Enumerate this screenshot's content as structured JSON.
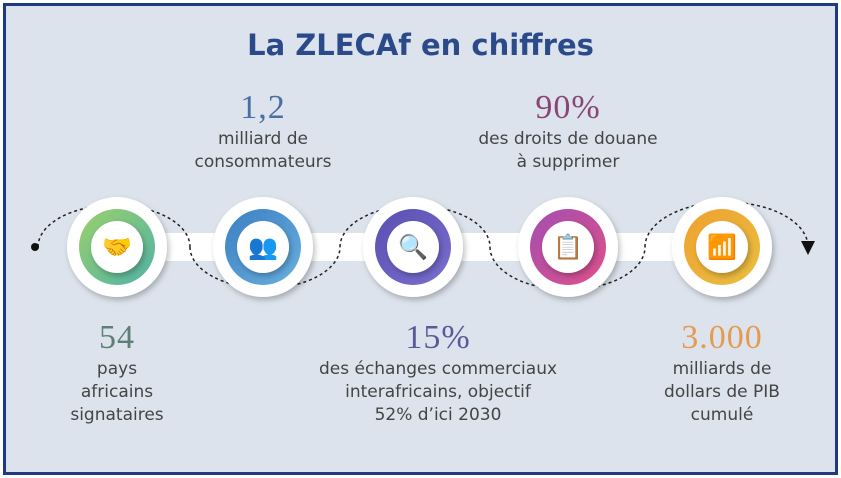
{
  "title": "La ZLECAf en chiffres",
  "stats": [
    {
      "value": "54",
      "label": "pays\nafricains\nsignataires",
      "color": "#5f7f74",
      "icon": "handshake-icon",
      "ring": [
        "#9bd06a",
        "#4fb3a8"
      ]
    },
    {
      "value": "1,2",
      "label": "milliard de\nconsommateurs",
      "color": "#4a6fa5",
      "icon": "people-icon",
      "ring": [
        "#3a7fc2",
        "#6ab0e0"
      ]
    },
    {
      "value": "15%",
      "label": "des échanges commerciaux\ninterafricains, objectif\n52% d’ici 2030",
      "color": "#5a5a9a",
      "icon": "globe-search-icon",
      "ring": [
        "#5a4fb0",
        "#7a6fd0"
      ]
    },
    {
      "value": "90%",
      "label": "des droits de douane\nà supprimer",
      "color": "#8a4577",
      "icon": "clipboard-check-icon",
      "ring": [
        "#a24fb0",
        "#e0508a"
      ]
    },
    {
      "value": "3.000",
      "label": "milliards de\ndollars de PIB\ncumulé",
      "color": "#e59b4f",
      "icon": "growth-chart-icon",
      "ring": [
        "#f0a030",
        "#e8c040"
      ]
    }
  ]
}
